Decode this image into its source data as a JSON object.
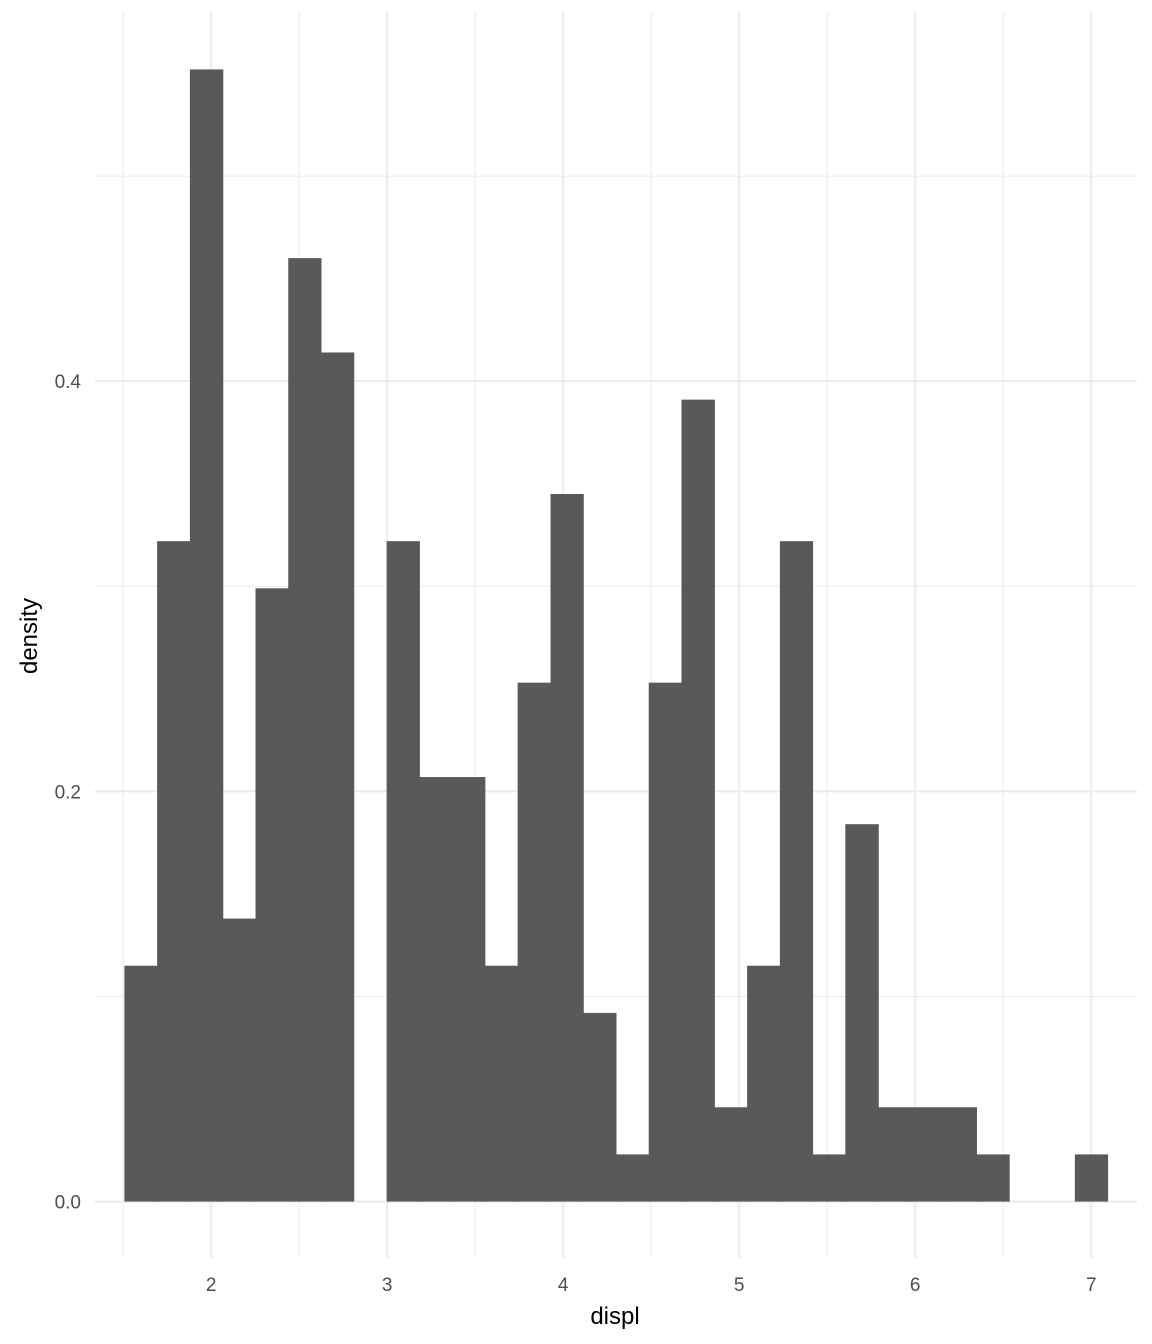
{
  "chart_data": {
    "type": "bar",
    "subtype": "histogram",
    "title": "",
    "xlabel": "displ",
    "ylabel": "density",
    "xlim": [
      1.34,
      7.26
    ],
    "ylim": [
      -0.0275,
      0.58
    ],
    "x_ticks": [
      2,
      3,
      4,
      5,
      6,
      7
    ],
    "x_tick_labels": [
      "2",
      "3",
      "4",
      "5",
      "6",
      "7"
    ],
    "y_ticks": [
      0.0,
      0.2,
      0.4
    ],
    "y_tick_labels": [
      "0.0",
      "0.2",
      "0.4"
    ],
    "grid": true,
    "legend": "none",
    "bar_color": "#595959",
    "grid_color": "#ebebeb",
    "bins": [
      {
        "x_start": 1.507,
        "x_end": 1.693,
        "density": 0.115
      },
      {
        "x_start": 1.693,
        "x_end": 1.879,
        "density": 0.322
      },
      {
        "x_start": 1.879,
        "x_end": 2.066,
        "density": 0.552
      },
      {
        "x_start": 2.066,
        "x_end": 2.252,
        "density": 0.138
      },
      {
        "x_start": 2.252,
        "x_end": 2.438,
        "density": 0.299
      },
      {
        "x_start": 2.438,
        "x_end": 2.624,
        "density": 0.46
      },
      {
        "x_start": 2.624,
        "x_end": 2.81,
        "density": 0.414
      },
      {
        "x_start": 2.81,
        "x_end": 2.997,
        "density": 0.0
      },
      {
        "x_start": 2.997,
        "x_end": 3.183,
        "density": 0.322
      },
      {
        "x_start": 3.183,
        "x_end": 3.369,
        "density": 0.207
      },
      {
        "x_start": 3.369,
        "x_end": 3.555,
        "density": 0.207
      },
      {
        "x_start": 3.555,
        "x_end": 3.741,
        "density": 0.115
      },
      {
        "x_start": 3.741,
        "x_end": 3.928,
        "density": 0.253
      },
      {
        "x_start": 3.928,
        "x_end": 4.114,
        "density": 0.345
      },
      {
        "x_start": 4.114,
        "x_end": 4.3,
        "density": 0.092
      },
      {
        "x_start": 4.3,
        "x_end": 4.486,
        "density": 0.023
      },
      {
        "x_start": 4.486,
        "x_end": 4.672,
        "density": 0.253
      },
      {
        "x_start": 4.672,
        "x_end": 4.859,
        "density": 0.391
      },
      {
        "x_start": 4.859,
        "x_end": 5.045,
        "density": 0.046
      },
      {
        "x_start": 5.045,
        "x_end": 5.231,
        "density": 0.115
      },
      {
        "x_start": 5.231,
        "x_end": 5.417,
        "density": 0.322
      },
      {
        "x_start": 5.417,
        "x_end": 5.603,
        "density": 0.023
      },
      {
        "x_start": 5.603,
        "x_end": 5.79,
        "density": 0.184
      },
      {
        "x_start": 5.79,
        "x_end": 5.976,
        "density": 0.046
      },
      {
        "x_start": 5.976,
        "x_end": 6.162,
        "density": 0.046
      },
      {
        "x_start": 6.162,
        "x_end": 6.348,
        "density": 0.046
      },
      {
        "x_start": 6.348,
        "x_end": 6.534,
        "density": 0.023
      },
      {
        "x_start": 6.534,
        "x_end": 6.721,
        "density": 0.0
      },
      {
        "x_start": 6.721,
        "x_end": 6.907,
        "density": 0.0
      },
      {
        "x_start": 6.907,
        "x_end": 7.093,
        "density": 0.023
      }
    ]
  }
}
